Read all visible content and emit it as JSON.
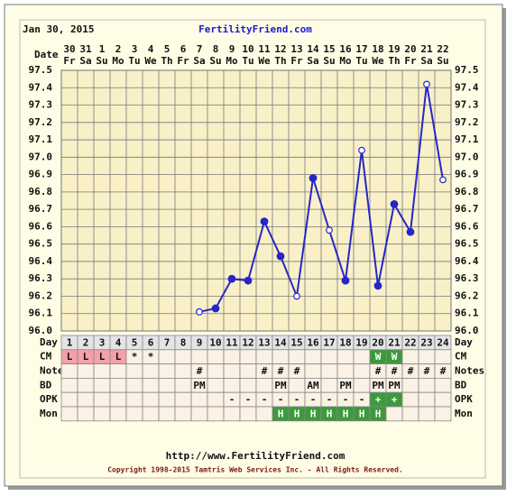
{
  "header": {
    "date": "Jan 30, 2015",
    "site": "FertilityFriend.com"
  },
  "chart_data": {
    "type": "line",
    "x_label": "Date",
    "categories": [
      "30",
      "31",
      "1",
      "2",
      "3",
      "4",
      "5",
      "6",
      "7",
      "8",
      "9",
      "10",
      "11",
      "12",
      "13",
      "14",
      "15",
      "16",
      "17",
      "18",
      "19",
      "20",
      "21",
      "22"
    ],
    "weekdays": [
      "Fr",
      "Sa",
      "Su",
      "Mo",
      "Tu",
      "We",
      "Th",
      "Fr",
      "Sa",
      "Su",
      "Mo",
      "Tu",
      "We",
      "Th",
      "Fr",
      "Sa",
      "Su",
      "Mo",
      "Tu",
      "We",
      "Th",
      "Fr",
      "Sa",
      "Su"
    ],
    "series": [
      {
        "color": "#2626c8",
        "values": [
          null,
          null,
          null,
          null,
          null,
          null,
          null,
          null,
          96.11,
          96.13,
          96.3,
          96.29,
          96.63,
          96.43,
          96.2,
          96.88,
          96.58,
          96.29,
          97.04,
          96.26,
          96.73,
          96.57,
          97.42,
          96.87
        ],
        "markers": [
          null,
          null,
          null,
          null,
          null,
          null,
          null,
          null,
          "open",
          "filled",
          "filled",
          "filled",
          "filled",
          "filled",
          "open",
          "filled",
          "open",
          "filled",
          "open",
          "filled",
          "filled",
          "filled",
          "open",
          "open"
        ]
      }
    ],
    "ylim": [
      96.0,
      97.5
    ],
    "yticks": [
      {
        "value": 96,
        "label": "96.0"
      },
      96.1,
      96.2,
      96.3,
      96.4,
      96.5,
      96.6,
      96.7,
      96.8,
      96.9,
      {
        "value": 97,
        "label": "97.0"
      },
      97.1,
      97.2,
      97.3,
      97.4,
      97.5
    ],
    "grid": true
  },
  "cycle_table": {
    "rows": [
      {
        "label": "Day",
        "cells": [
          1,
          2,
          3,
          4,
          5,
          6,
          7,
          8,
          9,
          10,
          11,
          12,
          13,
          14,
          15,
          16,
          17,
          18,
          19,
          20,
          21,
          22,
          23,
          24
        ]
      },
      {
        "label": "CM",
        "cells": [
          "L",
          "L",
          "L",
          "L",
          "*",
          "*",
          null,
          null,
          null,
          null,
          null,
          null,
          null,
          null,
          null,
          null,
          null,
          null,
          null,
          "W",
          "W",
          null,
          null,
          null
        ],
        "fills": [
          "#f4a0a8",
          "#f4a0a8",
          "#f4a0a8",
          "#f4a0a8",
          null,
          null,
          null,
          null,
          null,
          null,
          null,
          null,
          null,
          null,
          null,
          null,
          null,
          null,
          null,
          "#3c9a3c",
          "#3c9a3c",
          null,
          null,
          null
        ]
      },
      {
        "label": "Notes",
        "cells": [
          null,
          null,
          null,
          null,
          null,
          null,
          null,
          null,
          "#",
          null,
          null,
          null,
          "#",
          "#",
          "#",
          null,
          null,
          null,
          null,
          "#",
          "#",
          "#",
          "#",
          "#"
        ]
      },
      {
        "label": "BD",
        "cells": [
          null,
          null,
          null,
          null,
          null,
          null,
          null,
          null,
          "PM",
          null,
          null,
          null,
          null,
          "PM",
          null,
          "AM",
          null,
          "PM",
          null,
          "PM",
          "PM",
          null,
          null,
          null
        ]
      },
      {
        "label": "OPK",
        "cells": [
          null,
          null,
          null,
          null,
          null,
          null,
          null,
          null,
          null,
          null,
          "-",
          "-",
          "-",
          "-",
          "-",
          "-",
          "-",
          "-",
          "-",
          "+",
          "+",
          null,
          null,
          null
        ],
        "fills": [
          null,
          null,
          null,
          null,
          null,
          null,
          null,
          null,
          null,
          null,
          null,
          null,
          null,
          null,
          null,
          null,
          null,
          null,
          null,
          "#3c9a3c",
          "#3c9a3c",
          null,
          null,
          null
        ]
      },
      {
        "label": "Mon",
        "cells": [
          null,
          null,
          null,
          null,
          null,
          null,
          null,
          null,
          null,
          null,
          null,
          null,
          null,
          "H",
          "H",
          "H",
          "H",
          "H",
          "H",
          "H",
          null,
          null,
          null,
          null
        ],
        "fills": [
          null,
          null,
          null,
          null,
          null,
          null,
          null,
          null,
          null,
          null,
          null,
          null,
          null,
          "#3c9a3c",
          "#3c9a3c",
          "#3c9a3c",
          "#3c9a3c",
          "#3c9a3c",
          "#3c9a3c",
          "#3c9a3c",
          null,
          null,
          null,
          null
        ]
      }
    ]
  },
  "footer": {
    "url": "http://www.FertilityFriend.com",
    "copyright": "Copyright 1998-2015 Tamtris Web Services Inc. - All Rights Reserved."
  }
}
